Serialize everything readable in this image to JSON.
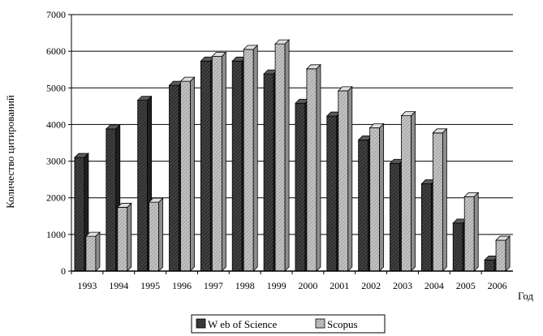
{
  "chart_data": {
    "type": "bar",
    "categories": [
      "1993",
      "1994",
      "1995",
      "1996",
      "1997",
      "1998",
      "1999",
      "2000",
      "2001",
      "2002",
      "2003",
      "2004",
      "2005",
      "2006"
    ],
    "series": [
      {
        "name": "W eb of Science",
        "values": [
          3100,
          3880,
          4660,
          5070,
          5730,
          5730,
          5380,
          4580,
          4230,
          3580,
          2940,
          2380,
          1310,
          300
        ],
        "color": "#3a3a3a"
      },
      {
        "name": "Scopus",
        "values": [
          950,
          1740,
          1880,
          5180,
          5860,
          6050,
          6200,
          5520,
          4920,
          3910,
          4240,
          3770,
          2030,
          840
        ],
        "color": "#b5b5b5"
      }
    ],
    "title": "",
    "xlabel": "Год",
    "ylabel": "Количество цитирований",
    "ylim": [
      0,
      7000
    ],
    "yticks": [
      0,
      1000,
      2000,
      3000,
      4000,
      5000,
      6000,
      7000
    ],
    "grid": true,
    "bar_style": "3d-hatched",
    "legend_position": "bottom-center"
  }
}
